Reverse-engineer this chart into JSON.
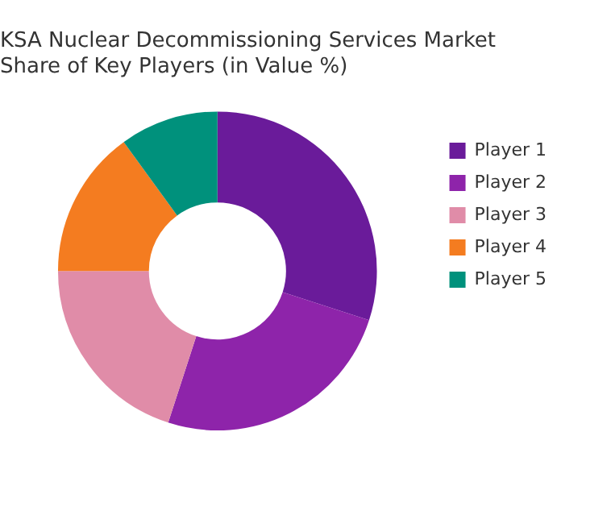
{
  "chart_data": {
    "type": "donut",
    "title": "KSA Nuclear Decommissioning Services Market Share of Key Players (in Value %)",
    "categories": [
      "Player 1",
      "Player 2",
      "Player 3",
      "Player 4",
      "Player 5"
    ],
    "values": [
      30,
      25,
      20,
      15,
      10
    ],
    "colors": [
      "#6a1b9a",
      "#8e24aa",
      "#e08ca8",
      "#f47c20",
      "#00917c"
    ],
    "legend": "right"
  }
}
